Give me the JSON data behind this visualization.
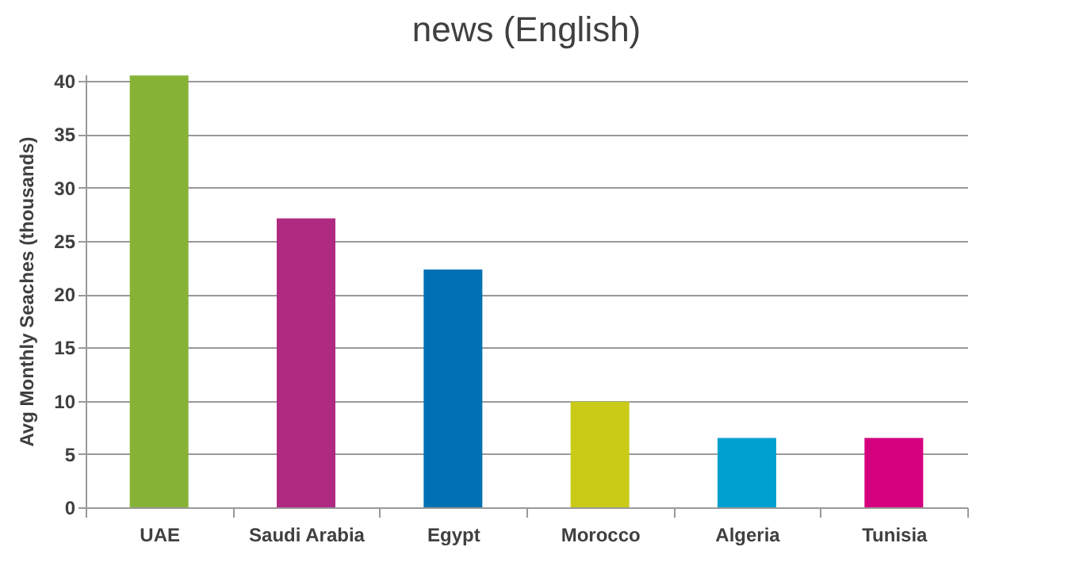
{
  "chart_data": {
    "type": "bar",
    "title": "news (English)",
    "ylabel": "Avg Monthly Seaches (thousands)",
    "categories": [
      "UAE",
      "Saudi Arabia",
      "Egypt",
      "Morocco",
      "Algeria",
      "Tunisia"
    ],
    "values": [
      40.5,
      27.1,
      22.3,
      9.9,
      6.5,
      6.5
    ],
    "colors": [
      "#86b336",
      "#b02a82",
      "#0071b3",
      "#c9cb17",
      "#00a0d0",
      "#d5007e"
    ],
    "ylim": [
      0,
      40.6
    ],
    "yticks": [
      0,
      5,
      10,
      15,
      20,
      25,
      30,
      35,
      40
    ],
    "grid": "y"
  }
}
